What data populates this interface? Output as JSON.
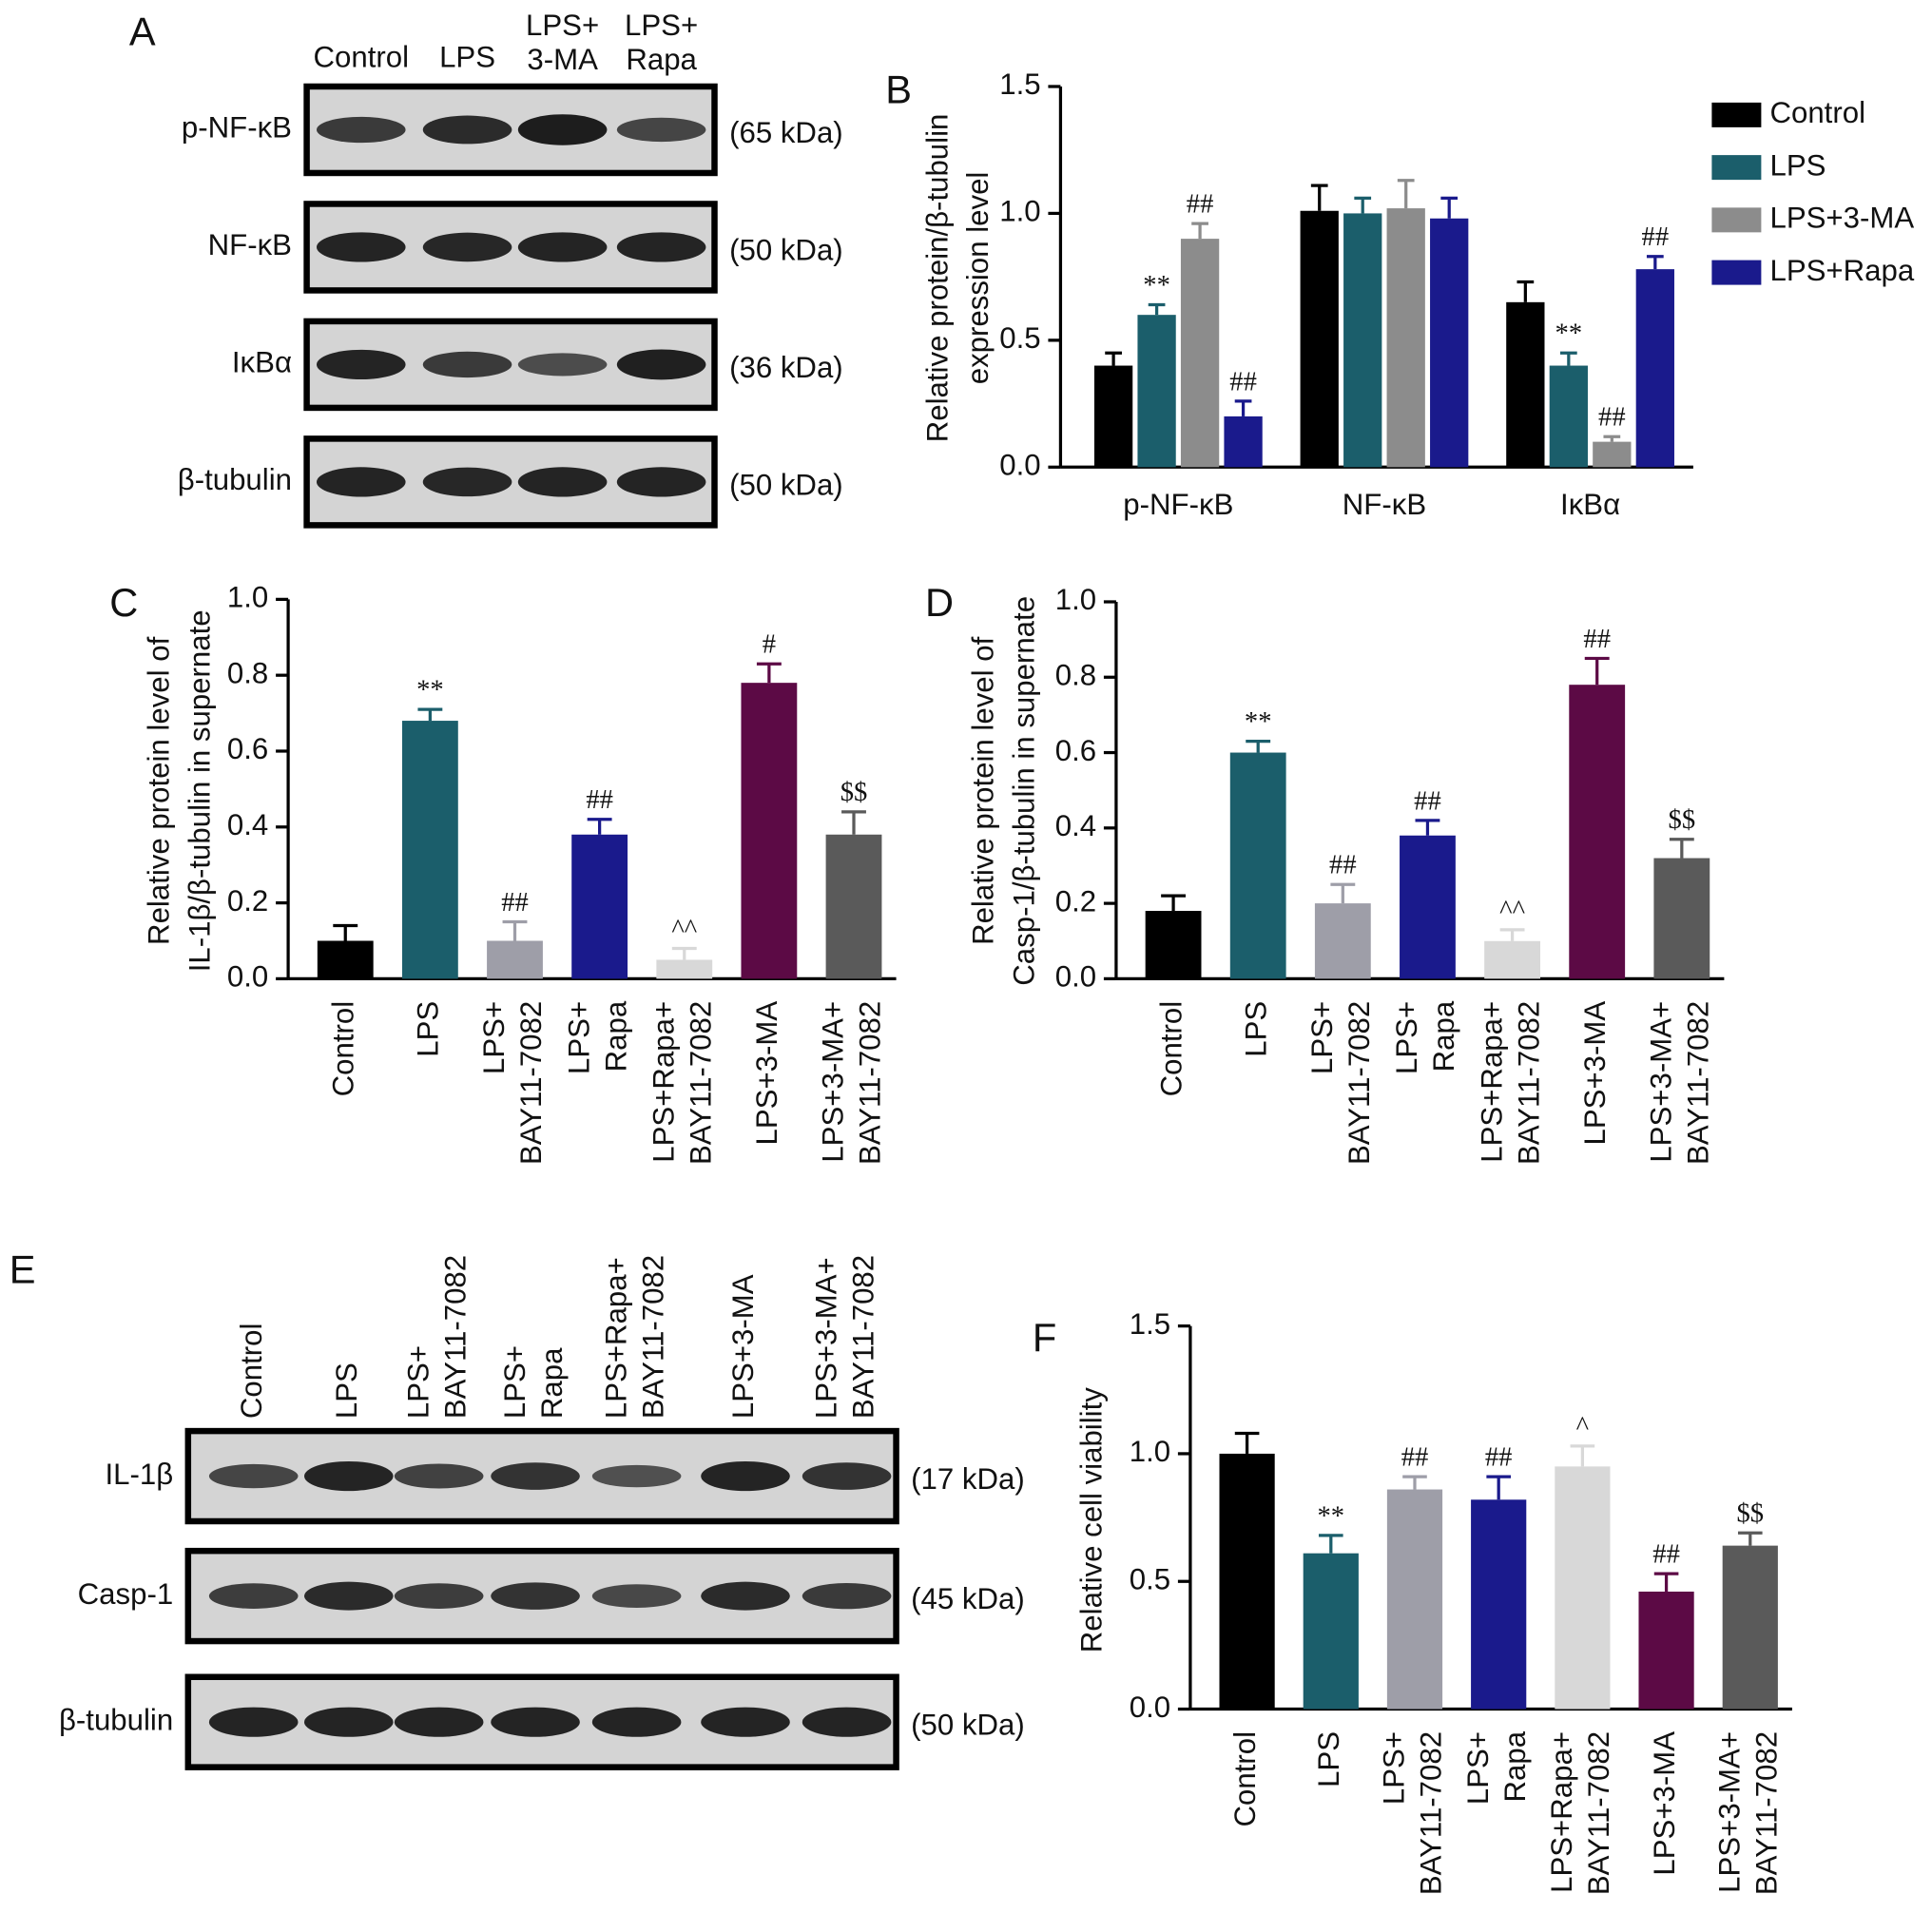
{
  "blots": [
    {
      "label": "A",
      "lanes": [
        "Control",
        "LPS",
        [
          "LPS+",
          "3-MA"
        ],
        [
          "LPS+",
          "Rapa"
        ]
      ],
      "rows": [
        {
          "name": "p-NF-κB",
          "size": "(65 kDa)"
        },
        {
          "name": "NF-κB",
          "size": "(50 kDa)"
        },
        {
          "name": "IκBα",
          "size": "(36 kDa)"
        },
        {
          "name": "β-tubulin",
          "size": "(50 kDa)"
        }
      ]
    },
    {
      "label": "E",
      "lanes": [
        "Control",
        "LPS",
        [
          "LPS+",
          "BAY11-7082"
        ],
        [
          "LPS+",
          "Rapa"
        ],
        [
          "LPS+Rapa+",
          "BAY11-7082"
        ],
        "LPS+3-MA",
        [
          "LPS+3-MA+",
          "BAY11-7082"
        ]
      ],
      "rows": [
        {
          "name": "IL-1β",
          "size": "(17 kDa)"
        },
        {
          "name": "Casp-1",
          "size": "(45 kDa)"
        },
        {
          "name": "β-tubulin",
          "size": "(50 kDa)"
        }
      ]
    }
  ],
  "chart_data": [
    {
      "type": "bar",
      "label": "B",
      "ylabel": [
        "Relative protein/β-tubulin",
        "expression level"
      ],
      "categories": [
        "p-NF-κB",
        "NF-κB",
        "IκBα"
      ],
      "series": [
        {
          "name": "Control",
          "color": "#000000",
          "values": [
            0.4,
            1.01,
            0.65
          ],
          "errors": [
            0.05,
            0.1,
            0.08
          ],
          "annotations": [
            null,
            null,
            null
          ]
        },
        {
          "name": "LPS",
          "color": "#1b5e6b",
          "values": [
            0.6,
            1.0,
            0.4
          ],
          "errors": [
            0.04,
            0.06,
            0.05
          ],
          "annotations": [
            "**",
            null,
            "**"
          ]
        },
        {
          "name": "LPS+3-MA",
          "color": "#8c8c8c",
          "values": [
            0.9,
            1.02,
            0.1
          ],
          "errors": [
            0.06,
            0.11,
            0.02
          ],
          "annotations": [
            "##",
            null,
            "##"
          ]
        },
        {
          "name": "LPS+Rapa",
          "color": "#1a1a8c",
          "values": [
            0.2,
            0.98,
            0.78
          ],
          "errors": [
            0.06,
            0.08,
            0.05
          ],
          "annotations": [
            "##",
            null,
            "##"
          ]
        }
      ],
      "ylim": [
        0,
        1.5
      ],
      "yticks": [
        {
          "value": 0,
          "label": "0.0"
        },
        0.5,
        {
          "value": 1,
          "label": "1.0"
        },
        1.5
      ],
      "legend": "upper right"
    },
    {
      "type": "bar",
      "label": "C",
      "ylabel": [
        "Relative protein level of",
        "IL-1β/β-tubulin in supernate"
      ],
      "categories": [
        "Control",
        "LPS",
        [
          "LPS+",
          "BAY11-7082"
        ],
        [
          "LPS+",
          "Rapa"
        ],
        [
          "LPS+Rapa+",
          "BAY11-7082"
        ],
        "LPS+3-MA",
        [
          "LPS+3-MA+",
          "BAY11-7082"
        ]
      ],
      "values": [
        0.1,
        0.68,
        0.1,
        0.38,
        0.05,
        0.78,
        0.38
      ],
      "errors": [
        0.04,
        0.03,
        0.05,
        0.04,
        0.03,
        0.05,
        0.06
      ],
      "annotations": [
        null,
        "**",
        "##",
        "##",
        "^^",
        "#",
        "$$"
      ],
      "colors": [
        "#000000",
        "#1b5e6b",
        "#9e9ea8",
        "#1a1a8c",
        "#d8d8d8",
        "#5c0a45",
        "#5a5a5a"
      ],
      "ylim": [
        0,
        1
      ],
      "yticks": [
        {
          "value": 0,
          "label": "0.0"
        },
        0.2,
        0.4,
        0.6,
        0.8,
        {
          "value": 1,
          "label": "1.0"
        }
      ]
    },
    {
      "type": "bar",
      "label": "D",
      "ylabel": [
        "Relative protein level of",
        "Casp-1/β-tubulin in supernate"
      ],
      "categories": [
        "Control",
        "LPS",
        [
          "LPS+",
          "BAY11-7082"
        ],
        [
          "LPS+",
          "Rapa"
        ],
        [
          "LPS+Rapa+",
          "BAY11-7082"
        ],
        "LPS+3-MA",
        [
          "LPS+3-MA+",
          "BAY11-7082"
        ]
      ],
      "values": [
        0.18,
        0.6,
        0.2,
        0.38,
        0.1,
        0.78,
        0.32
      ],
      "errors": [
        0.04,
        0.03,
        0.05,
        0.04,
        0.03,
        0.07,
        0.05
      ],
      "annotations": [
        null,
        "**",
        "##",
        "##",
        "^^",
        "##",
        "$$"
      ],
      "colors": [
        "#000000",
        "#1b5e6b",
        "#9e9ea8",
        "#1a1a8c",
        "#d8d8d8",
        "#5c0a45",
        "#5a5a5a"
      ],
      "ylim": [
        0,
        1
      ],
      "yticks": [
        {
          "value": 0,
          "label": "0.0"
        },
        0.2,
        0.4,
        0.6,
        0.8,
        {
          "value": 1,
          "label": "1.0"
        }
      ]
    },
    {
      "type": "bar",
      "label": "F",
      "ylabel": [
        "Relative cell viability"
      ],
      "categories": [
        "Control",
        "LPS",
        [
          "LPS+",
          "BAY11-7082"
        ],
        [
          "LPS+",
          "Rapa"
        ],
        [
          "LPS+Rapa+",
          "BAY11-7082"
        ],
        "LPS+3-MA",
        [
          "LPS+3-MA+",
          "BAY11-7082"
        ]
      ],
      "values": [
        1.0,
        0.61,
        0.86,
        0.82,
        0.95,
        0.46,
        0.64
      ],
      "errors": [
        0.08,
        0.07,
        0.05,
        0.09,
        0.08,
        0.07,
        0.05
      ],
      "annotations": [
        null,
        "**",
        "##",
        "##",
        "^",
        "##",
        "$$"
      ],
      "colors": [
        "#000000",
        "#1b5e6b",
        "#9e9ea8",
        "#1a1a8c",
        "#d8d8d8",
        "#5c0a45",
        "#5a5a5a"
      ],
      "ylim": [
        0,
        1.5
      ],
      "yticks": [
        {
          "value": 0,
          "label": "0.0"
        },
        0.5,
        {
          "value": 1,
          "label": "1.0"
        },
        1.5
      ]
    }
  ]
}
